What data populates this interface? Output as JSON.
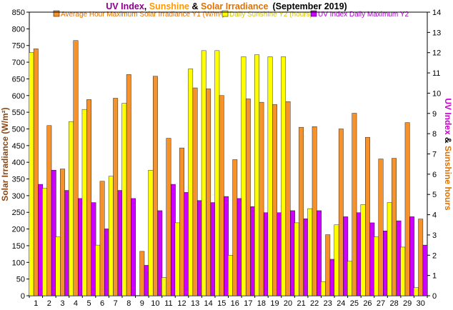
{
  "chart_data": {
    "type": "bar",
    "title": {
      "part1": "UV Index",
      "sep1": ", ",
      "part2": "Sunshine",
      "sep2": " & ",
      "part3": "Solar Irradiance",
      "part4": "(September 2019)"
    },
    "categories": [
      "1",
      "2",
      "3",
      "4",
      "5",
      "6",
      "7",
      "8",
      "9",
      "10",
      "11",
      "12",
      "13",
      "14",
      "15",
      "16",
      "17",
      "18",
      "19",
      "20",
      "21",
      "22",
      "23",
      "24",
      "25",
      "26",
      "27",
      "28",
      "29",
      "30"
    ],
    "y1_label": "Solar Irradiance (W/m²)",
    "y2_label_parts": [
      "UV Index",
      " & ",
      "Sunshine hours"
    ],
    "y1_lim": [
      0,
      850
    ],
    "y1_ticks": [
      0,
      50,
      100,
      150,
      200,
      250,
      300,
      350,
      400,
      450,
      500,
      550,
      600,
      650,
      700,
      750,
      800,
      850
    ],
    "y2_lim": [
      0,
      14
    ],
    "y2_ticks": [
      0,
      1,
      2,
      3,
      4,
      5,
      6,
      7,
      8,
      9,
      10,
      11,
      12,
      13,
      14
    ],
    "series": [
      {
        "name": "Average Hour Maximum Solar Irradiance Y1 (W/m²)",
        "axis": "y1",
        "color": "#f5922b",
        "values": [
          740,
          510,
          380,
          765,
          588,
          343,
          592,
          663,
          133,
          658,
          472,
          443,
          623,
          620,
          600,
          408,
          590,
          580,
          573,
          582,
          505,
          507,
          183,
          500,
          547,
          475,
          410,
          412,
          519,
          230
        ]
      },
      {
        "name": "Daily Sunshine Y2 (hours)",
        "axis": "y2",
        "color": "#ffff00",
        "values": [
          12.0,
          5.3,
          2.9,
          8.6,
          9.2,
          2.5,
          5.9,
          9.5,
          0.0,
          6.2,
          0.9,
          3.6,
          11.2,
          12.1,
          12.1,
          2.0,
          11.8,
          11.9,
          11.8,
          11.8,
          3.6,
          4.3,
          0.7,
          3.5,
          1.7,
          4.5,
          2.9,
          4.6,
          2.4,
          0.4
        ]
      },
      {
        "name": "UV Index Daily Maximum Y2",
        "axis": "y2",
        "color": "#cc00ff",
        "values": [
          5.5,
          6.2,
          5.2,
          4.8,
          4.6,
          3.3,
          5.2,
          4.8,
          1.5,
          4.2,
          5.5,
          5.1,
          4.7,
          4.6,
          4.9,
          4.8,
          4.4,
          4.1,
          4.1,
          4.2,
          3.8,
          4.2,
          1.8,
          3.9,
          4.1,
          3.6,
          3.2,
          3.7,
          3.9,
          2.5
        ]
      }
    ],
    "grid": false,
    "legend_position": "top"
  },
  "colors": {
    "title_uv": "#8b008b",
    "title_sunshine": "#ff9900",
    "title_solar": "#e07000",
    "title_date": "#000000",
    "y1_label": "#8b4513",
    "y2_uv": "#cc00cc",
    "y2_amp": "#000000",
    "y2_sun": "#e07000",
    "right_ticks": "#c000c0",
    "legend_yellow_text": "#d4c400",
    "legend_orange_text": "#e07000",
    "legend_purple_text": "#aa00cc"
  }
}
